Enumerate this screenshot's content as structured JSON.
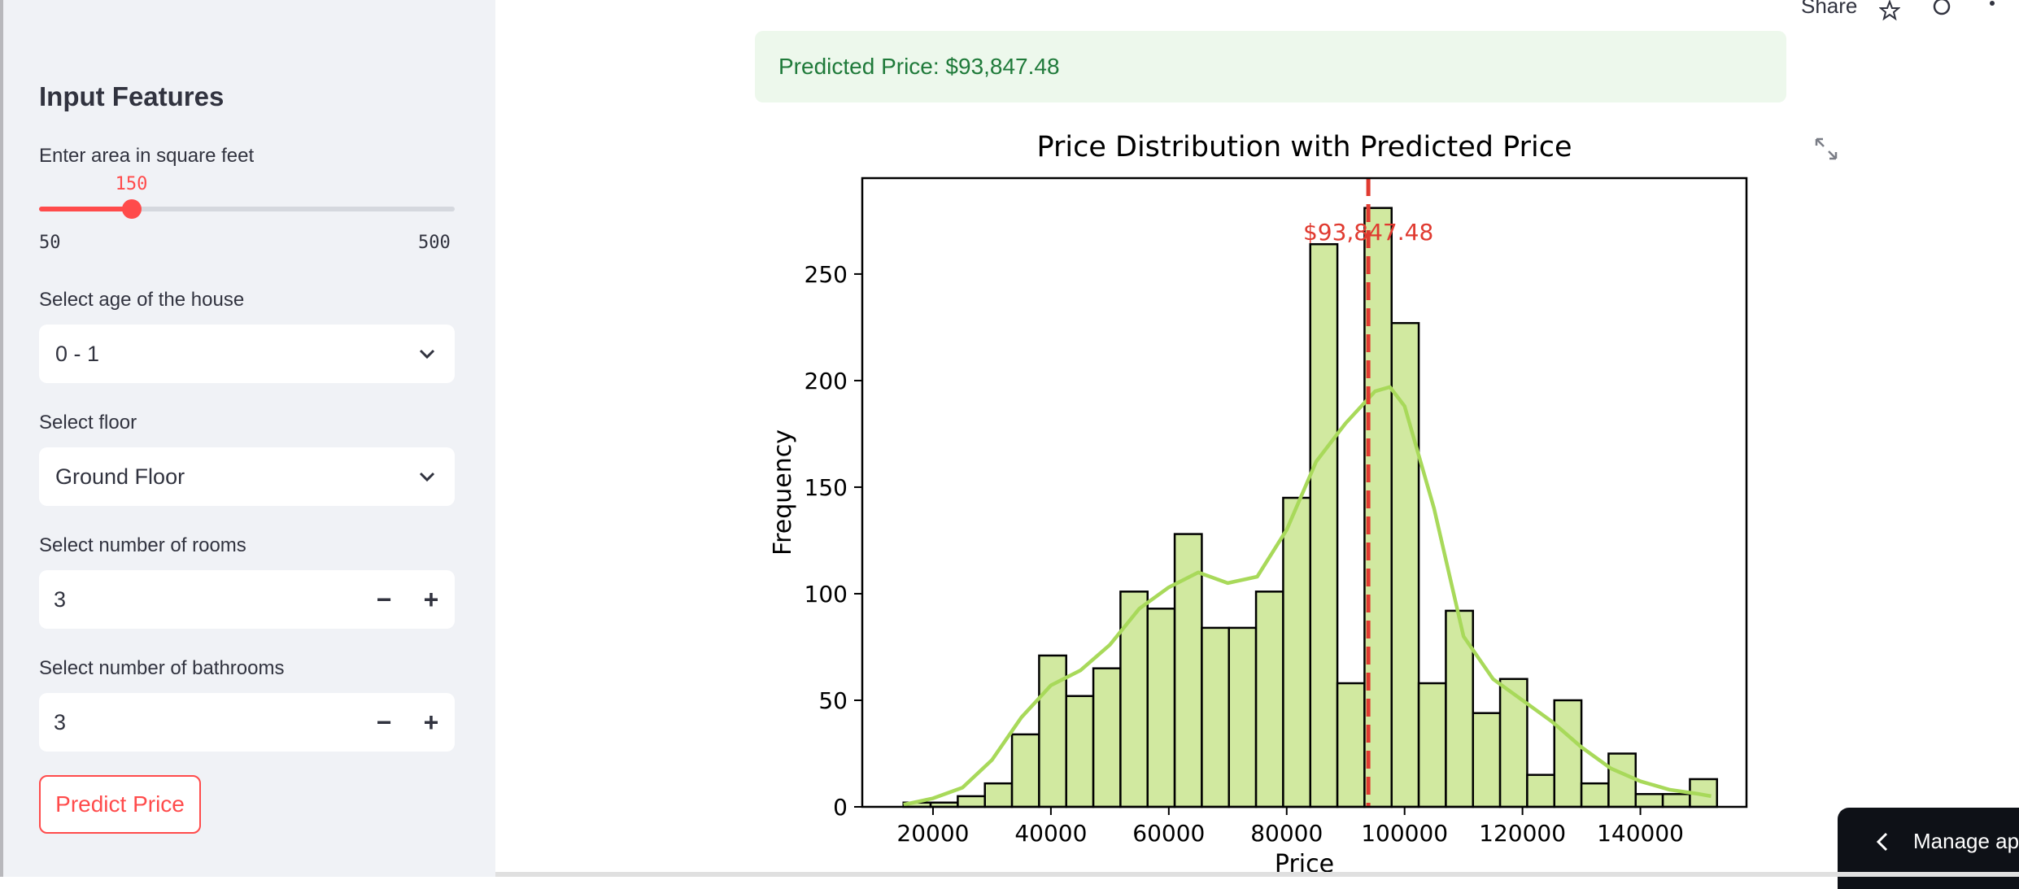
{
  "sidebar": {
    "title": "Input Features",
    "area": {
      "label": "Enter area in square feet",
      "value": "150",
      "min": "50",
      "max": "500",
      "fraction": 0.2222
    },
    "age": {
      "label": "Select age of the house",
      "selected": "0 - 1"
    },
    "floor": {
      "label": "Select floor",
      "selected": "Ground Floor"
    },
    "rooms": {
      "label": "Select number of rooms",
      "value": "3",
      "minus": "−",
      "plus": "+"
    },
    "bathrooms": {
      "label": "Select number of bathrooms",
      "value": "3",
      "minus": "−",
      "plus": "+"
    },
    "predict_button": "Predict Price"
  },
  "header": {
    "share_label": "Share"
  },
  "result": {
    "message": "Predicted Price: $93,847.48"
  },
  "manage_app": {
    "label": "Manage app"
  },
  "colors": {
    "accent": "#ff4b4b",
    "bar_fill": "#d1e9a0",
    "kde_line": "#a8d95a",
    "pred_line": "#e03a30",
    "success_bg": "#edf8ec",
    "success_text": "#1f7a3a"
  },
  "chart_data": {
    "type": "bar",
    "title": "Price Distribution with Predicted Price",
    "xlabel": "Price",
    "ylabel": "Frequency",
    "xlim": [
      8000,
      158000
    ],
    "ylim": [
      0,
      295
    ],
    "xticks": [
      20000,
      40000,
      60000,
      80000,
      100000,
      120000,
      140000
    ],
    "yticks": [
      0,
      50,
      100,
      150,
      200,
      250
    ],
    "bin_start": 15000,
    "bin_width": 4600,
    "values": [
      2,
      2,
      5,
      11,
      34,
      71,
      52,
      65,
      101,
      93,
      128,
      84,
      84,
      101,
      145,
      264,
      58,
      281,
      227,
      58,
      92,
      44,
      60,
      15,
      50,
      11,
      25,
      6,
      6,
      13
    ],
    "kde": {
      "x": [
        15000,
        20000,
        25000,
        30000,
        35000,
        40000,
        45000,
        50000,
        55000,
        60000,
        65000,
        70000,
        75000,
        80000,
        85000,
        90000,
        95000,
        97500,
        100000,
        105000,
        110000,
        115000,
        120000,
        125000,
        130000,
        135000,
        140000,
        145000,
        150000,
        152000
      ],
      "y": [
        1,
        4,
        9,
        22,
        42,
        57,
        64,
        76,
        93,
        103,
        110,
        105,
        108,
        130,
        162,
        180,
        195,
        197,
        188,
        140,
        80,
        60,
        50,
        40,
        28,
        18,
        12,
        8,
        6,
        5
      ]
    },
    "predicted": {
      "value": 93847.48,
      "label": "$93,847.48"
    },
    "grid": false
  }
}
